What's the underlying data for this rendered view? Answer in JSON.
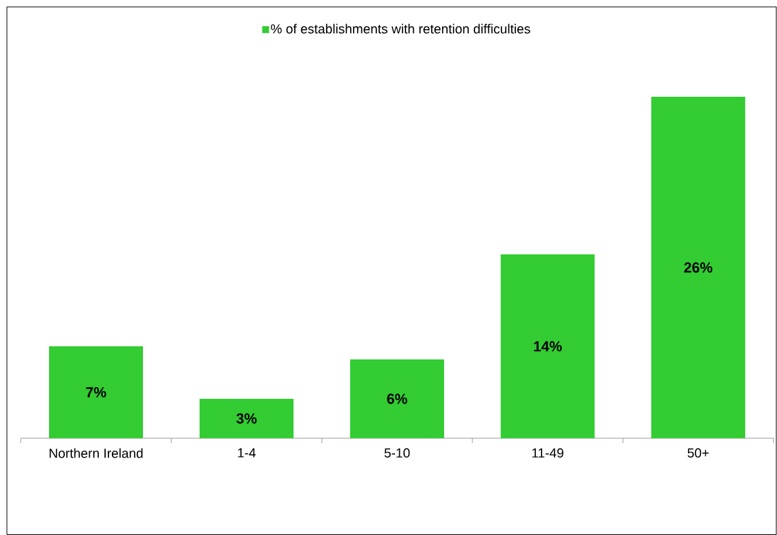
{
  "chart_data": {
    "type": "bar",
    "categories": [
      "Northern Ireland",
      "1-4",
      "5-10",
      "11-49",
      "50+"
    ],
    "series": [
      {
        "name": "% of establishments with retention difficulties",
        "color": "#33cc33",
        "values": [
          7,
          3,
          6,
          14,
          26
        ],
        "value_labels": [
          "7%",
          "3%",
          "6%",
          "14%",
          "26%"
        ]
      }
    ],
    "legend": "top"
  }
}
